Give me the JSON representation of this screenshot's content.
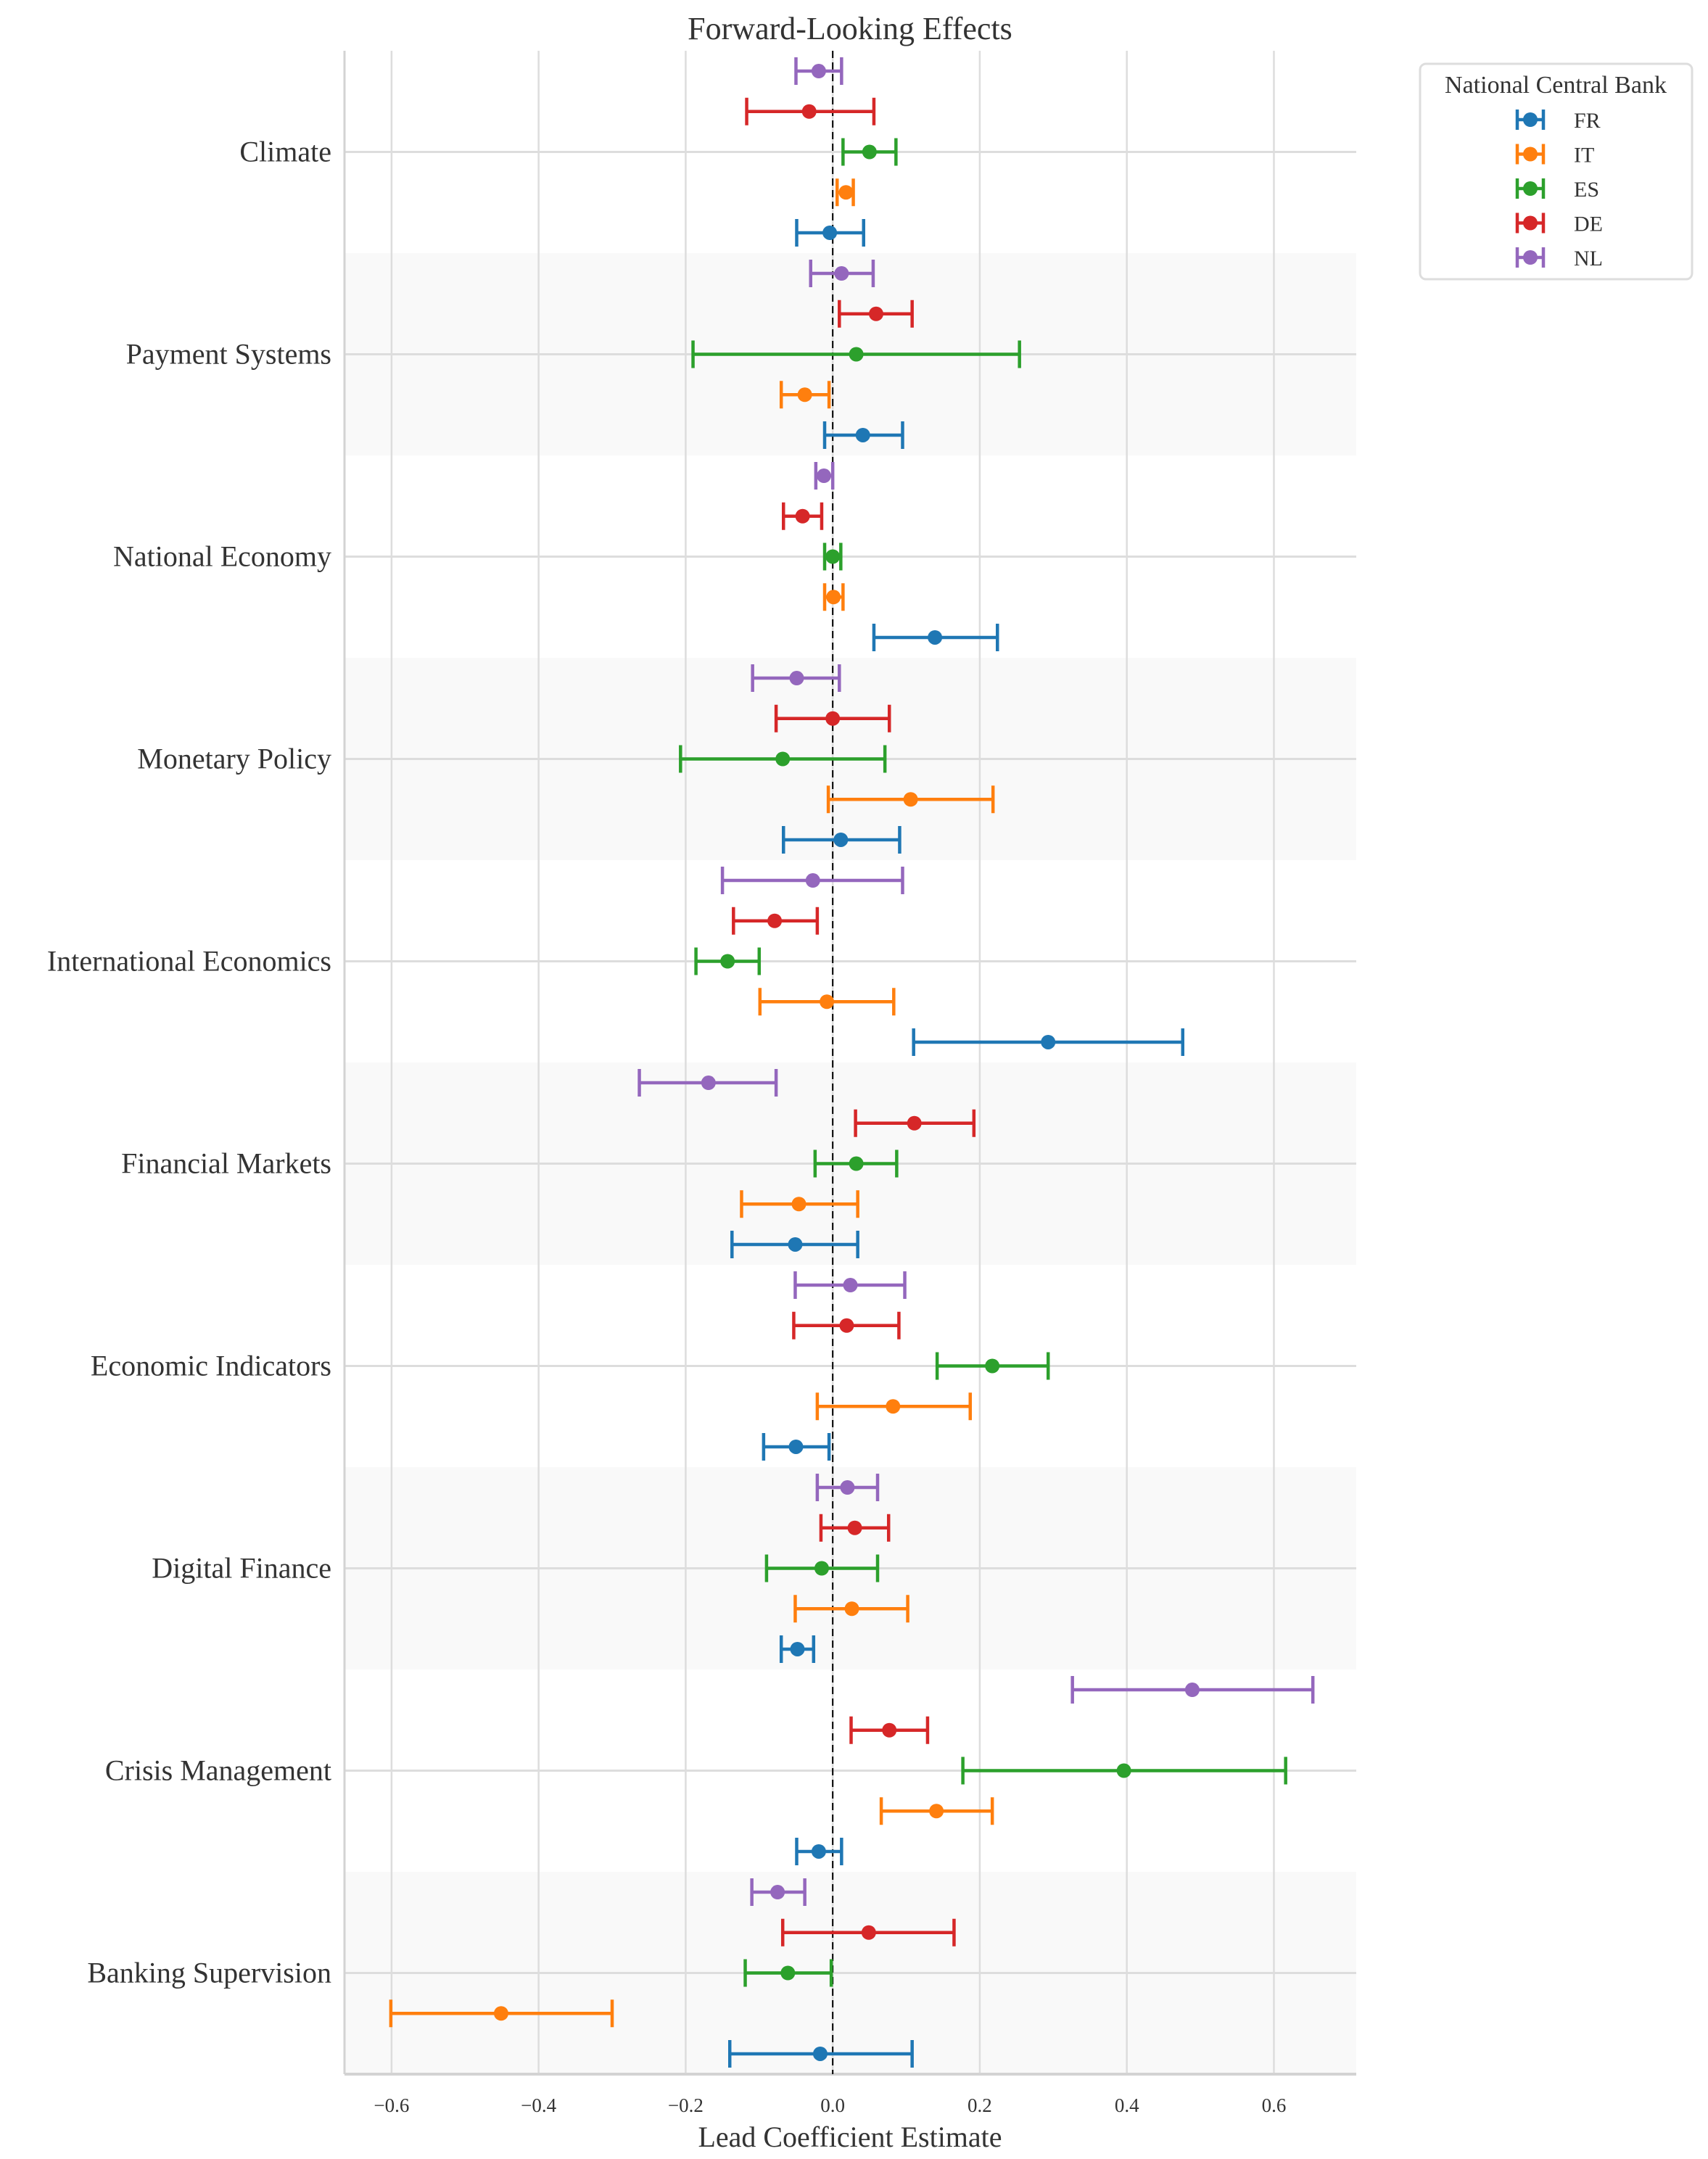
{
  "chart_data": {
    "type": "errorbar",
    "title": "Forward-Looking Effects",
    "xlabel": "Lead Coefficient Estimate",
    "ylabel": "",
    "xlim": [
      -0.664,
      0.712
    ],
    "xticks": [
      -0.6,
      -0.4,
      -0.2,
      0.0,
      0.2,
      0.4,
      0.6
    ],
    "xtick_labels": [
      "−0.6",
      "−0.4",
      "−0.2",
      "0.0",
      "0.2",
      "0.4",
      "0.6"
    ],
    "grid": true,
    "reference_line": {
      "x": 0.0,
      "style": "dashed",
      "color": "#000000"
    },
    "alternating_bands": true,
    "categories": [
      "Climate",
      "Payment Systems",
      "National Economy",
      "Monetary Policy",
      "International Economics",
      "Financial Markets",
      "Economic Indicators",
      "Digital Finance",
      "Crisis Management",
      "Banking Supervision"
    ],
    "legend": {
      "title": "National Central Bank",
      "placement": "outside-top-right"
    },
    "series": [
      {
        "name": "FR",
        "color": "#1f77b4",
        "estimates": [
          -0.004,
          0.041,
          0.139,
          0.011,
          0.293,
          -0.051,
          -0.05,
          -0.048,
          -0.019,
          -0.017
        ],
        "ci_low": [
          -0.049,
          -0.011,
          0.056,
          -0.067,
          0.11,
          -0.137,
          -0.094,
          -0.07,
          -0.049,
          -0.14
        ],
        "ci_high": [
          0.042,
          0.095,
          0.224,
          0.091,
          0.476,
          0.034,
          -0.005,
          -0.026,
          0.012,
          0.108
        ]
      },
      {
        "name": "IT",
        "color": "#ff7f0e",
        "estimates": [
          0.018,
          -0.038,
          0.001,
          0.106,
          -0.008,
          -0.046,
          0.082,
          0.026,
          0.141,
          -0.451
        ],
        "ci_low": [
          0.006,
          -0.07,
          -0.011,
          -0.006,
          -0.099,
          -0.124,
          -0.021,
          -0.051,
          0.066,
          -0.601
        ],
        "ci_high": [
          0.028,
          -0.005,
          0.014,
          0.218,
          0.083,
          0.034,
          0.187,
          0.102,
          0.217,
          -0.3
        ]
      },
      {
        "name": "ES",
        "color": "#2ca02c",
        "estimates": [
          0.05,
          0.032,
          0.0,
          -0.068,
          -0.143,
          0.032,
          0.217,
          -0.015,
          0.396,
          -0.061
        ],
        "ci_low": [
          0.014,
          -0.19,
          -0.011,
          -0.207,
          -0.186,
          -0.024,
          0.142,
          -0.09,
          0.177,
          -0.119
        ],
        "ci_high": [
          0.086,
          0.254,
          0.011,
          0.071,
          -0.1,
          0.087,
          0.293,
          0.061,
          0.616,
          -0.002
        ]
      },
      {
        "name": "DE",
        "color": "#d62728",
        "estimates": [
          -0.032,
          0.059,
          -0.041,
          0.0,
          -0.079,
          0.111,
          0.019,
          0.03,
          0.077,
          0.049
        ],
        "ci_low": [
          -0.117,
          0.009,
          -0.067,
          -0.077,
          -0.135,
          0.031,
          -0.053,
          -0.016,
          0.025,
          -0.068
        ],
        "ci_high": [
          0.056,
          0.108,
          -0.015,
          0.077,
          -0.021,
          0.192,
          0.09,
          0.076,
          0.129,
          0.165
        ]
      },
      {
        "name": "NL",
        "color": "#9467bd",
        "estimates": [
          -0.019,
          0.012,
          -0.012,
          -0.049,
          -0.027,
          -0.169,
          0.024,
          0.02,
          0.489,
          -0.075
        ],
        "ci_low": [
          -0.05,
          -0.03,
          -0.023,
          -0.109,
          -0.15,
          -0.263,
          -0.051,
          -0.021,
          0.326,
          -0.11
        ],
        "ci_high": [
          0.012,
          0.055,
          0.0,
          0.009,
          0.095,
          -0.077,
          0.098,
          0.061,
          0.653,
          -0.038
        ]
      }
    ]
  }
}
